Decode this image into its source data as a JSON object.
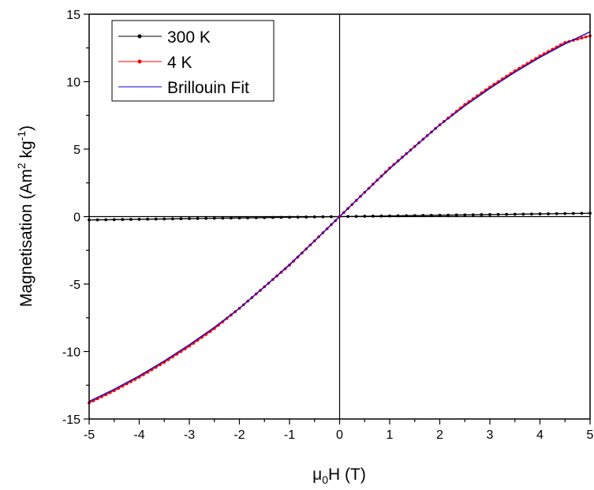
{
  "chart_data": {
    "type": "line",
    "xlabel": {
      "main": "μ",
      "sub": "0",
      "rest": "H (T)"
    },
    "ylabel": {
      "pre": "Magnetisation (Am",
      "sup1": "2",
      "mid": " kg",
      "sup2": "-1",
      "post": ")"
    },
    "xlim": [
      -5,
      5
    ],
    "ylim": [
      -15,
      15
    ],
    "xticks": [
      -5,
      -4,
      -3,
      -2,
      -1,
      0,
      1,
      2,
      3,
      4,
      5
    ],
    "yticks": [
      -15,
      -10,
      -5,
      0,
      5,
      10,
      15
    ],
    "grid": false,
    "zero_lines": true,
    "legend_position": "top-left",
    "series": [
      {
        "name": "300 K",
        "color": "#000000",
        "marker": "circle",
        "x": [
          -5,
          -4,
          -3,
          -2,
          -1,
          0,
          1,
          2,
          3,
          4,
          5
        ],
        "y": [
          -0.25,
          -0.2,
          -0.15,
          -0.1,
          -0.05,
          0,
          0.05,
          0.1,
          0.15,
          0.2,
          0.25
        ]
      },
      {
        "name": "4 K",
        "color": "#ff0000",
        "marker": "circle",
        "x": [
          -5,
          -4.5,
          -4,
          -3.5,
          -3,
          -2.5,
          -2,
          -1.5,
          -1,
          -0.5,
          0,
          0.5,
          1,
          1.5,
          2,
          2.5,
          3,
          3.5,
          4,
          4.5,
          5
        ],
        "y": [
          -13.8,
          -12.9,
          -11.9,
          -10.8,
          -9.6,
          -8.3,
          -6.8,
          -5.2,
          -3.6,
          -1.8,
          0,
          1.8,
          3.6,
          5.2,
          6.8,
          8.3,
          9.6,
          10.8,
          11.9,
          12.9,
          13.4
        ]
      },
      {
        "name": "Brillouin Fit",
        "color": "#0000cc",
        "marker": "none",
        "x": [
          -5,
          -4.5,
          -4,
          -3.5,
          -3,
          -2.5,
          -2,
          -1.5,
          -1,
          -0.5,
          0,
          0.5,
          1,
          1.5,
          2,
          2.5,
          3,
          3.5,
          4,
          4.5,
          5
        ],
        "y": [
          -13.7,
          -12.8,
          -11.8,
          -10.7,
          -9.5,
          -8.2,
          -6.8,
          -5.2,
          -3.55,
          -1.8,
          0,
          1.8,
          3.55,
          5.2,
          6.8,
          8.2,
          9.5,
          10.7,
          11.8,
          12.8,
          13.7
        ]
      }
    ]
  }
}
